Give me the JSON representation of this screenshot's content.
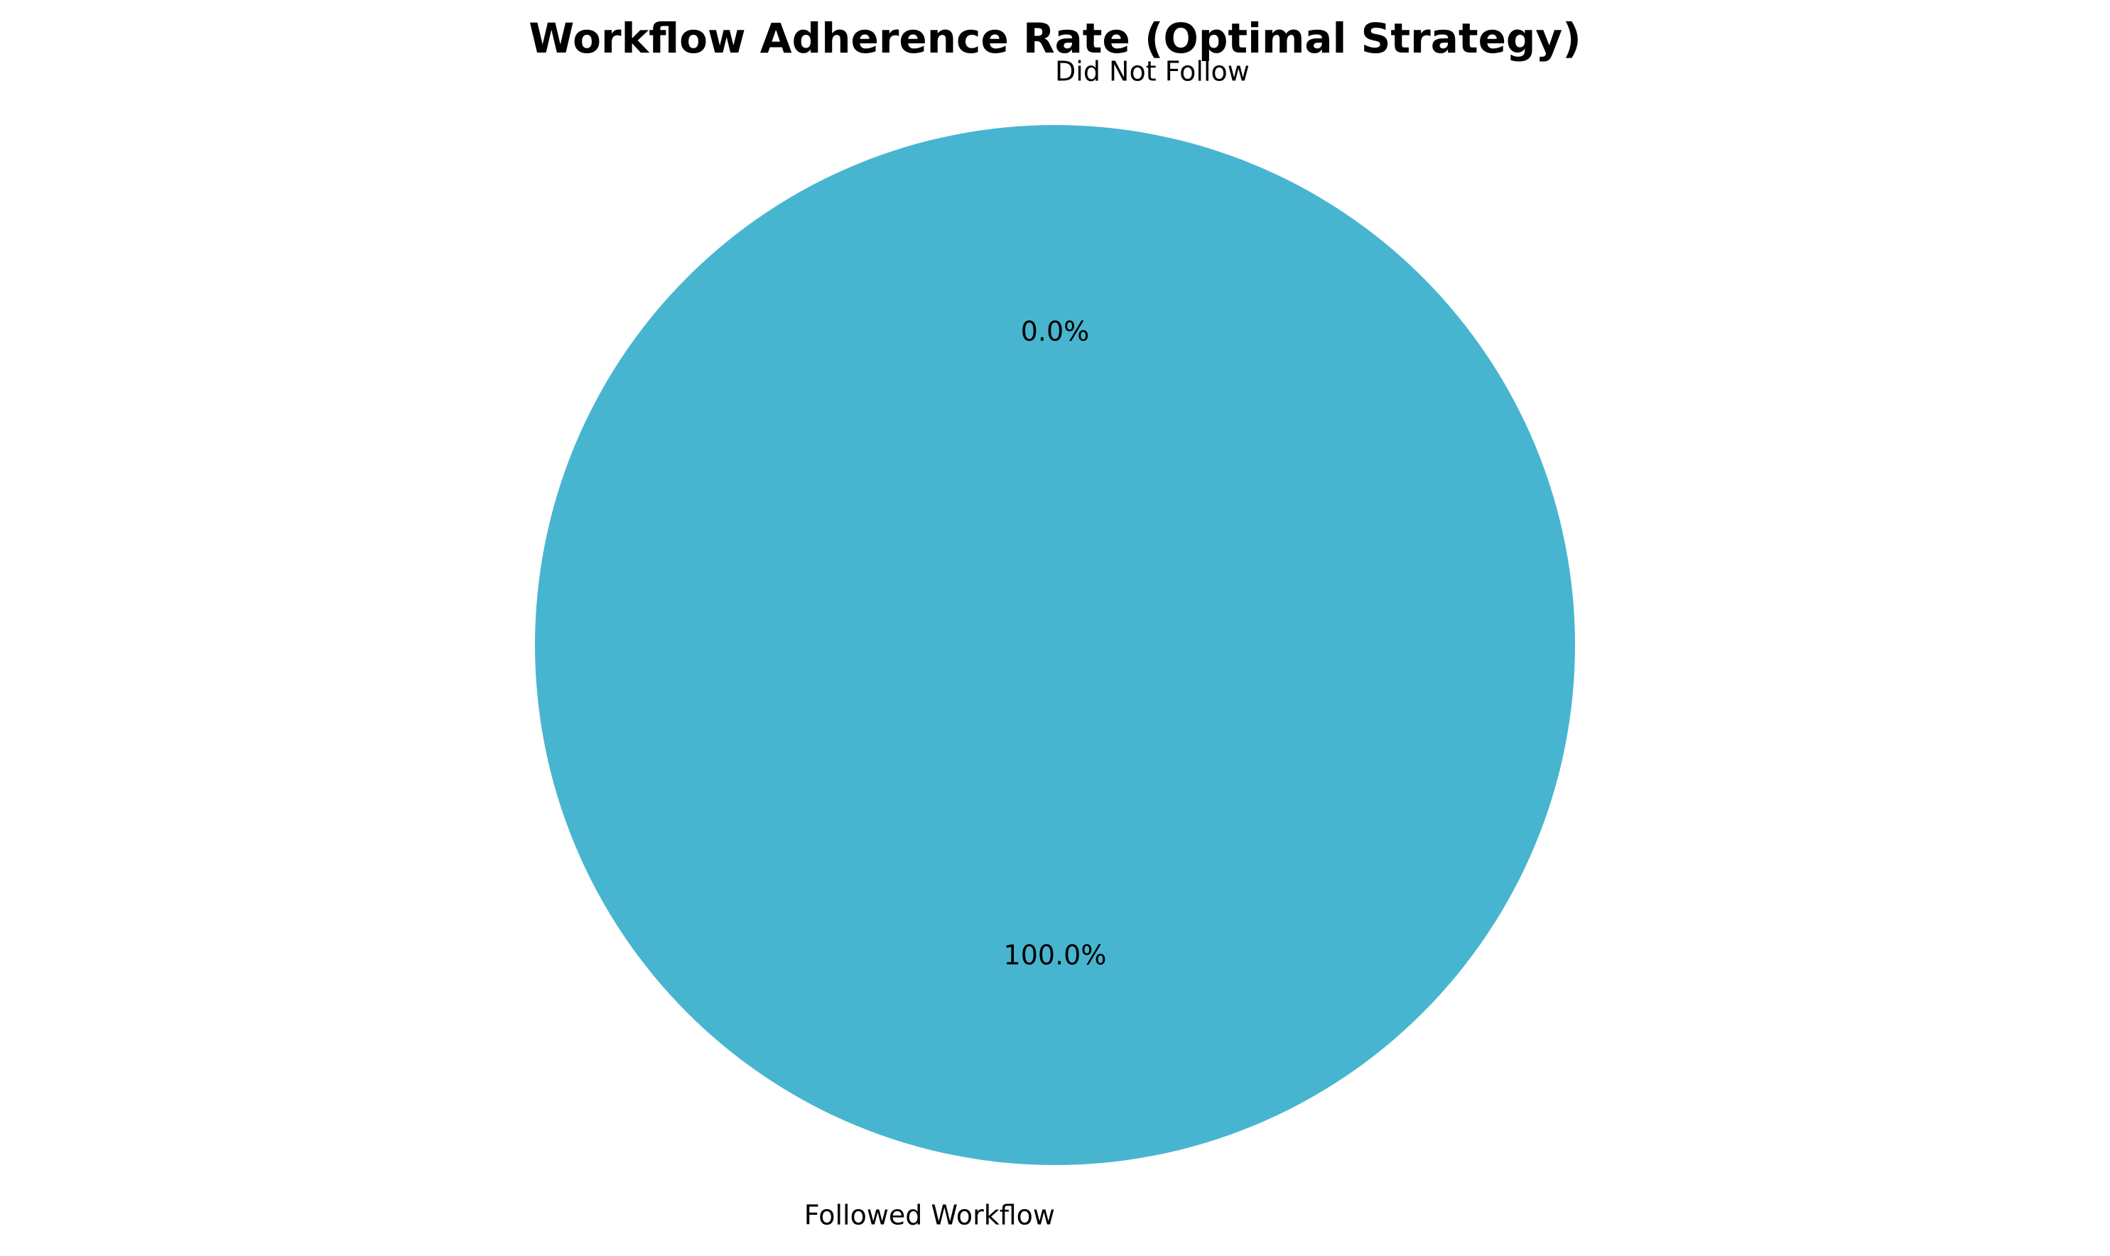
{
  "chart_data": {
    "type": "pie",
    "title": "Workflow Adherence Rate (Optimal Strategy)",
    "slices": [
      {
        "label": "Followed Workflow",
        "value": 100.0,
        "pct_label": "100.0%",
        "color": "#48B5D0"
      },
      {
        "label": "Did Not Follow",
        "value": 0.0,
        "pct_label": "0.0%",
        "color": "#F08A6E"
      }
    ],
    "start_angle_deg": 90,
    "direction": "counterclockwise",
    "legend": "none"
  }
}
